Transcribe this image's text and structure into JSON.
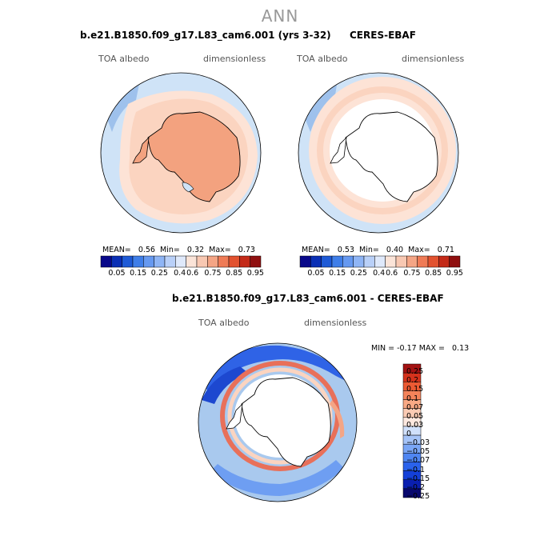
{
  "page_title": "ANN",
  "colors": {
    "ocean_light": "#cfe3f7",
    "ice_edge": "#a9c9ee",
    "coast": "#000000",
    "positive_bar": "#f3a27f"
  },
  "chart_data": [
    {
      "type": "heatmap",
      "projection": "south-polar-stereographic",
      "title": "b.e21.B1850.f09_g17.L83_cam6.001 (yrs 3-32)",
      "left_label": "TOA albedo",
      "right_label": "dimensionless",
      "stats": {
        "mean_label": "MEAN=",
        "mean": "0.56",
        "min_label": "Min=",
        "min": "0.32",
        "max_label": "Max=",
        "max": "0.73"
      },
      "colorbar": {
        "colors": [
          "#08088a",
          "#0a2fb5",
          "#1e5ad6",
          "#3f7ee8",
          "#6699f0",
          "#8fb5f5",
          "#b9d0f8",
          "#dfe9fb",
          "#fbe4d8",
          "#f8c8b2",
          "#f4a585",
          "#ef7b56",
          "#e2522f",
          "#c42a18",
          "#8f0f0f"
        ],
        "labels": [
          "0.05",
          "0.15",
          "0.25",
          "0.4",
          "0.6",
          "0.75",
          "0.85",
          "0.95"
        ]
      }
    },
    {
      "type": "heatmap",
      "projection": "south-polar-stereographic",
      "title": "CERES-EBAF",
      "left_label": "TOA albedo",
      "right_label": "dimensionless",
      "stats": {
        "mean_label": "MEAN=",
        "mean": "0.53",
        "min_label": "Min=",
        "min": "0.40",
        "max_label": "Max=",
        "max": "0.71"
      },
      "colorbar": {
        "colors": [
          "#08088a",
          "#0a2fb5",
          "#1e5ad6",
          "#3f7ee8",
          "#6699f0",
          "#8fb5f5",
          "#b9d0f8",
          "#dfe9fb",
          "#fbe4d8",
          "#f8c8b2",
          "#f4a585",
          "#ef7b56",
          "#e2522f",
          "#c42a18",
          "#8f0f0f"
        ],
        "labels": [
          "0.05",
          "0.15",
          "0.25",
          "0.4",
          "0.6",
          "0.75",
          "0.85",
          "0.95"
        ]
      }
    },
    {
      "type": "heatmap",
      "projection": "south-polar-stereographic",
      "title": "b.e21.B1850.f09_g17.L83_cam6.001 - CERES-EBAF",
      "left_label": "TOA albedo",
      "right_label": "dimensionless",
      "stats": {
        "min_label": "MIN =",
        "min": "-0.17",
        "max_label": "MAX =",
        "max": "0.13"
      },
      "colorbar": {
        "colors": [
          "#08086e",
          "#0a1fb0",
          "#1440d8",
          "#2a62ec",
          "#4f86f2",
          "#7aa6f5",
          "#a6c4f8",
          "#d0e0fb",
          "#fde8df",
          "#fbcbb4",
          "#f8a985",
          "#f4835a",
          "#ec5a33",
          "#d4321c",
          "#a31212"
        ],
        "labels": [
          "0.25",
          "0.2",
          "0.15",
          "0.1",
          "0.07",
          "0.05",
          "0.03",
          "0",
          "−0.03",
          "−0.05",
          "−0.07",
          "−0.1",
          "−0.15",
          "−0.2",
          "−0.25"
        ]
      }
    }
  ]
}
